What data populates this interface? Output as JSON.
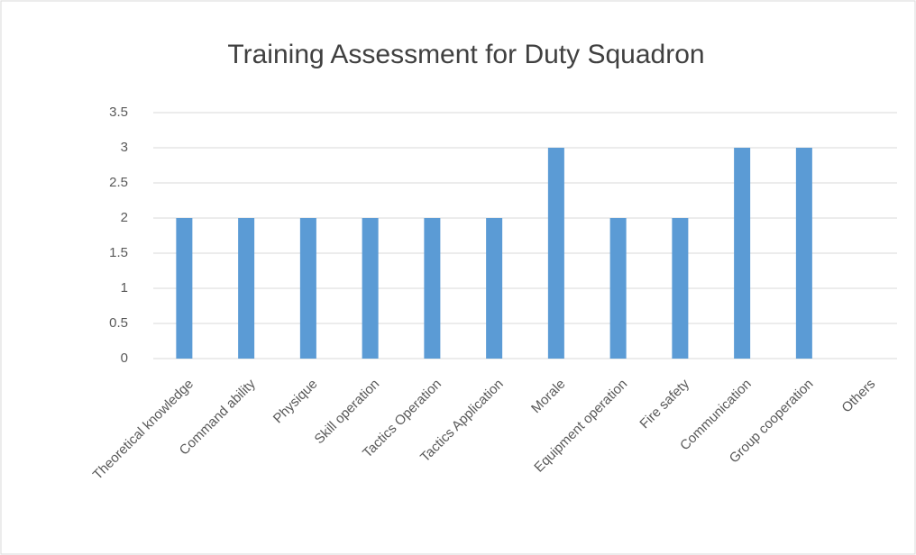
{
  "chart_data": {
    "type": "bar",
    "title": "Training Assessment  for Duty Squadron",
    "categories": [
      "Theoretical knowledge",
      "Command ability",
      "Physique",
      "Skill operation",
      "Tactics Operation",
      "Tactics Application",
      "Morale",
      "Equipment operation",
      "Fire safety",
      "Communication",
      "Group cooperation",
      "Others"
    ],
    "values": [
      2,
      2,
      2,
      2,
      2,
      2,
      3,
      2,
      2,
      3,
      3,
      null
    ],
    "color": "#5b9bd5",
    "ylim": [
      0,
      3.5
    ],
    "yticks": [
      0,
      0.5,
      1,
      1.5,
      2,
      2.5,
      3,
      3.5
    ],
    "grid": true
  }
}
